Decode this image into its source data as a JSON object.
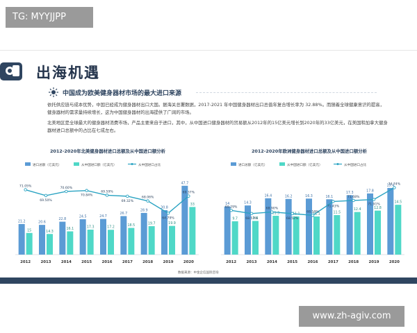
{
  "badge_text": "TG: MYYJJPP",
  "watermark_text": "www.zh-agiv.com",
  "title": "出海机遇",
  "subtitle": "中国成为欧美健身器材市场的最大进口来源",
  "paragraphs": [
    "依托供应链与成本优势，中国已经成为健身器材出口大国。据海关总署数据，2017-2021 年中国健身器材出口总值年复合增长率为 32.88%。而随着全球健康意识的提高，健身器材的需求量持续增长，这为中国健身器材的出海提供了广阔的市场。",
    "北美地区是全球最大的健身器材消费市场，产品主要来自于进口，其中，从中国进口健身器材的贸易额从2012年的15亿美元增长到2020年的33亿美元，在美国和加拿大健身器材进口总额中的占比在七成左右。"
  ],
  "source_note": "数据来源：中金企信国际咨询",
  "colors": {
    "total_bar": "#5b9bd5",
    "china_bar": "#4fd8c7",
    "share_line": "#2aa3c2",
    "brand_dark": "#2f4560"
  },
  "chart_data": [
    {
      "type": "bar",
      "title": "2012-2020年北美健身器材进口总额及从中国进口额分析",
      "categories": [
        "2012",
        "2013",
        "2014",
        "2015",
        "2016",
        "2017",
        "2018",
        "2019",
        "2020"
      ],
      "series": [
        {
          "name": "进口总额（亿美元）",
          "kind": "bar",
          "values": [
            21.2,
            20.6,
            22.8,
            24.5,
            24.7,
            26.7,
            28.9,
            30.8,
            47.7
          ],
          "labels": [
            "21.2",
            "20.6",
            "22.8",
            "24.5",
            "24.7",
            "26.7",
            "28.9",
            "30.8",
            "47.7"
          ]
        },
        {
          "name": "从中国进口额（亿美元）",
          "kind": "bar",
          "values": [
            15,
            14.3,
            16.1,
            17.3,
            17.2,
            18.5,
            19.7,
            19.9,
            33
          ],
          "labels": [
            "15",
            "14.3",
            "16.1",
            "17.3",
            "17.2",
            "18.5",
            "19.7",
            "19.9",
            "33"
          ]
        },
        {
          "name": "从中国进口占比",
          "kind": "line",
          "values": [
            71.05,
            69.5,
            70.6,
            70.84,
            69.59,
            69.32,
            68.06,
            64.79,
            69.37
          ],
          "labels": [
            "71.05%",
            "69.50%",
            "70.60%",
            "70.84%",
            "69.59%",
            "69.32%",
            "68.06%",
            "64.79%",
            "69.37%"
          ]
        }
      ],
      "ylim": [
        0,
        50
      ]
    },
    {
      "type": "bar",
      "title": "2012-2020年欧洲健身器材进口总额及从中国进口额分析",
      "categories": [
        "2012",
        "2013",
        "2014",
        "2015",
        "2016",
        "2017",
        "2018",
        "2019",
        "2020"
      ],
      "series": [
        {
          "name": "进口总额（亿美元）",
          "kind": "bar",
          "values": [
            14,
            14.3,
            16.4,
            16.2,
            16.3,
            16.1,
            17.3,
            17.8,
            19.4
          ],
          "labels": [
            "14",
            "14.3",
            "16.4",
            "16.2",
            "16.3",
            "16.1",
            "17.3",
            "17.8",
            "19.4"
          ]
        },
        {
          "name": "从中国进口额（亿美元）",
          "kind": "bar",
          "values": [
            9.7,
            9.8,
            11.3,
            11.1,
            11.1,
            11.5,
            12.4,
            12.8,
            14.5
          ],
          "labels": [
            "9.7",
            "9.8",
            "11.3",
            "11.1",
            "11.1",
            "11.5",
            "12.4",
            "12.8",
            "14.5"
          ]
        },
        {
          "name": "从中国进口占比",
          "kind": "line",
          "values": [
            69.29,
            68.53,
            68.9,
            68.52,
            68.1,
            71.43,
            71.68,
            71.91,
            74.74
          ],
          "labels": [
            "69.29%",
            "68.53%",
            "68.90%",
            "68.52%",
            "68.10%",
            "71.43%",
            "71.68%",
            "71.91%",
            "74.74%"
          ]
        }
      ],
      "ylim": [
        0,
        21
      ]
    }
  ]
}
